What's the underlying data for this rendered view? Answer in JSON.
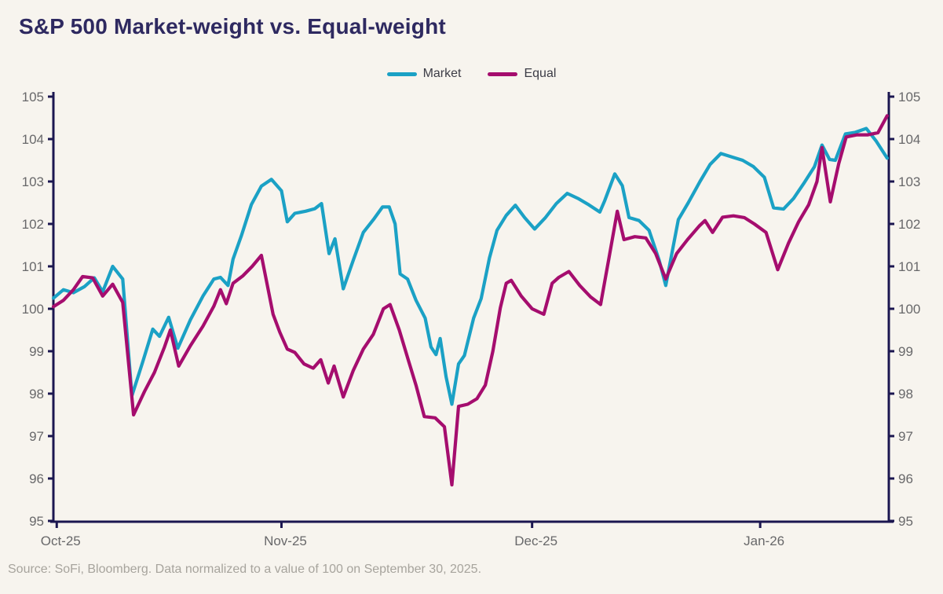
{
  "title": "S&P 500 Market-weight vs. Equal-weight",
  "source_note": "Source: SoFi, Bloomberg. Data normalized to a value of 100 on September 30, 2025.",
  "colors": {
    "background": "#f7f4ee",
    "title": "#2e2960",
    "axis": "#1b1650",
    "tick_label": "#68686a",
    "market": "#1ba1c5",
    "equal": "#a50d6e"
  },
  "legend": {
    "market_label": "Market",
    "equal_label": "Equal"
  },
  "chart_data": {
    "type": "line",
    "title": "S&P 500 Market-weight vs. Equal-weight",
    "xlabel": "",
    "ylabel": "",
    "grid": false,
    "legend_position": "top-center",
    "y_axis": {
      "min": 95,
      "max": 105,
      "step": 1,
      "tick_labels": [
        95,
        96,
        97,
        98,
        99,
        100,
        101,
        102,
        103,
        104,
        105
      ],
      "sides": "both"
    },
    "x_axis": {
      "tick_labels": [
        "Oct-25",
        "Nov-25",
        "Dec-25",
        "Jan-26"
      ],
      "tick_positions": [
        0.004,
        0.273,
        0.573,
        0.846
      ]
    },
    "series": [
      {
        "name": "Market",
        "color": "#1ba1c5",
        "points": [
          [
            0.0,
            100.25
          ],
          [
            0.012,
            100.45
          ],
          [
            0.024,
            100.38
          ],
          [
            0.037,
            100.52
          ],
          [
            0.049,
            100.73
          ],
          [
            0.059,
            100.4
          ],
          [
            0.071,
            101.0
          ],
          [
            0.083,
            100.7
          ],
          [
            0.094,
            97.95
          ],
          [
            0.107,
            98.75
          ],
          [
            0.119,
            99.52
          ],
          [
            0.127,
            99.35
          ],
          [
            0.138,
            99.8
          ],
          [
            0.149,
            99.07
          ],
          [
            0.164,
            99.74
          ],
          [
            0.179,
            100.3
          ],
          [
            0.192,
            100.7
          ],
          [
            0.2,
            100.74
          ],
          [
            0.209,
            100.55
          ],
          [
            0.215,
            101.17
          ],
          [
            0.225,
            101.72
          ],
          [
            0.237,
            102.46
          ],
          [
            0.249,
            102.89
          ],
          [
            0.261,
            103.05
          ],
          [
            0.273,
            102.78
          ],
          [
            0.28,
            102.05
          ],
          [
            0.289,
            102.25
          ],
          [
            0.302,
            102.3
          ],
          [
            0.313,
            102.36
          ],
          [
            0.321,
            102.48
          ],
          [
            0.33,
            101.3
          ],
          [
            0.337,
            101.65
          ],
          [
            0.347,
            100.47
          ],
          [
            0.359,
            101.15
          ],
          [
            0.371,
            101.8
          ],
          [
            0.383,
            102.1
          ],
          [
            0.394,
            102.4
          ],
          [
            0.402,
            102.4
          ],
          [
            0.409,
            102.0
          ],
          [
            0.415,
            100.82
          ],
          [
            0.424,
            100.7
          ],
          [
            0.434,
            100.2
          ],
          [
            0.445,
            99.78
          ],
          [
            0.452,
            99.1
          ],
          [
            0.458,
            98.92
          ],
          [
            0.463,
            99.3
          ],
          [
            0.47,
            98.4
          ],
          [
            0.477,
            97.75
          ],
          [
            0.485,
            98.7
          ],
          [
            0.492,
            98.9
          ],
          [
            0.503,
            99.78
          ],
          [
            0.512,
            100.24
          ],
          [
            0.522,
            101.2
          ],
          [
            0.531,
            101.85
          ],
          [
            0.542,
            102.2
          ],
          [
            0.553,
            102.44
          ],
          [
            0.564,
            102.15
          ],
          [
            0.576,
            101.88
          ],
          [
            0.589,
            102.15
          ],
          [
            0.602,
            102.48
          ],
          [
            0.615,
            102.72
          ],
          [
            0.628,
            102.6
          ],
          [
            0.641,
            102.45
          ],
          [
            0.654,
            102.28
          ],
          [
            0.66,
            102.55
          ],
          [
            0.672,
            103.18
          ],
          [
            0.681,
            102.9
          ],
          [
            0.689,
            102.15
          ],
          [
            0.701,
            102.08
          ],
          [
            0.713,
            101.85
          ],
          [
            0.725,
            101.15
          ],
          [
            0.733,
            100.55
          ],
          [
            0.748,
            102.1
          ],
          [
            0.76,
            102.5
          ],
          [
            0.774,
            103.0
          ],
          [
            0.786,
            103.4
          ],
          [
            0.799,
            103.66
          ],
          [
            0.812,
            103.58
          ],
          [
            0.825,
            103.5
          ],
          [
            0.838,
            103.35
          ],
          [
            0.851,
            103.1
          ],
          [
            0.862,
            102.38
          ],
          [
            0.874,
            102.35
          ],
          [
            0.886,
            102.6
          ],
          [
            0.898,
            102.95
          ],
          [
            0.911,
            103.35
          ],
          [
            0.92,
            103.86
          ],
          [
            0.929,
            103.52
          ],
          [
            0.936,
            103.5
          ],
          [
            0.948,
            104.12
          ],
          [
            0.96,
            104.16
          ],
          [
            0.973,
            104.25
          ],
          [
            0.985,
            103.95
          ],
          [
            0.998,
            103.55
          ]
        ]
      },
      {
        "name": "Equal",
        "color": "#a50d6e",
        "points": [
          [
            0.0,
            100.05
          ],
          [
            0.012,
            100.2
          ],
          [
            0.024,
            100.45
          ],
          [
            0.035,
            100.76
          ],
          [
            0.047,
            100.73
          ],
          [
            0.059,
            100.3
          ],
          [
            0.071,
            100.58
          ],
          [
            0.083,
            100.15
          ],
          [
            0.096,
            97.5
          ],
          [
            0.109,
            98.05
          ],
          [
            0.121,
            98.5
          ],
          [
            0.133,
            99.1
          ],
          [
            0.14,
            99.5
          ],
          [
            0.15,
            98.65
          ],
          [
            0.164,
            99.13
          ],
          [
            0.179,
            99.59
          ],
          [
            0.192,
            100.06
          ],
          [
            0.2,
            100.45
          ],
          [
            0.207,
            100.12
          ],
          [
            0.215,
            100.6
          ],
          [
            0.227,
            100.78
          ],
          [
            0.238,
            101.0
          ],
          [
            0.249,
            101.26
          ],
          [
            0.263,
            99.87
          ],
          [
            0.271,
            99.45
          ],
          [
            0.28,
            99.05
          ],
          [
            0.289,
            98.97
          ],
          [
            0.3,
            98.7
          ],
          [
            0.311,
            98.6
          ],
          [
            0.32,
            98.8
          ],
          [
            0.329,
            98.25
          ],
          [
            0.336,
            98.65
          ],
          [
            0.347,
            97.92
          ],
          [
            0.359,
            98.55
          ],
          [
            0.371,
            99.05
          ],
          [
            0.383,
            99.4
          ],
          [
            0.395,
            100.0
          ],
          [
            0.403,
            100.1
          ],
          [
            0.414,
            99.5
          ],
          [
            0.425,
            98.78
          ],
          [
            0.434,
            98.2
          ],
          [
            0.444,
            97.46
          ],
          [
            0.457,
            97.43
          ],
          [
            0.468,
            97.22
          ],
          [
            0.477,
            95.85
          ],
          [
            0.485,
            97.7
          ],
          [
            0.496,
            97.75
          ],
          [
            0.507,
            97.88
          ],
          [
            0.517,
            98.2
          ],
          [
            0.526,
            99.0
          ],
          [
            0.535,
            100.02
          ],
          [
            0.542,
            100.6
          ],
          [
            0.548,
            100.67
          ],
          [
            0.56,
            100.3
          ],
          [
            0.573,
            100.0
          ],
          [
            0.587,
            99.87
          ],
          [
            0.597,
            100.6
          ],
          [
            0.605,
            100.74
          ],
          [
            0.617,
            100.88
          ],
          [
            0.63,
            100.55
          ],
          [
            0.643,
            100.28
          ],
          [
            0.655,
            100.1
          ],
          [
            0.665,
            101.2
          ],
          [
            0.675,
            102.3
          ],
          [
            0.683,
            101.63
          ],
          [
            0.696,
            101.7
          ],
          [
            0.709,
            101.67
          ],
          [
            0.721,
            101.3
          ],
          [
            0.733,
            100.7
          ],
          [
            0.746,
            101.3
          ],
          [
            0.759,
            101.63
          ],
          [
            0.773,
            101.95
          ],
          [
            0.78,
            102.08
          ],
          [
            0.789,
            101.8
          ],
          [
            0.801,
            102.16
          ],
          [
            0.814,
            102.19
          ],
          [
            0.827,
            102.15
          ],
          [
            0.839,
            102.0
          ],
          [
            0.853,
            101.8
          ],
          [
            0.867,
            100.92
          ],
          [
            0.88,
            101.55
          ],
          [
            0.892,
            102.05
          ],
          [
            0.904,
            102.45
          ],
          [
            0.914,
            103.0
          ],
          [
            0.92,
            103.8
          ],
          [
            0.93,
            102.52
          ],
          [
            0.94,
            103.42
          ],
          [
            0.949,
            104.05
          ],
          [
            0.962,
            104.1
          ],
          [
            0.975,
            104.1
          ],
          [
            0.987,
            104.15
          ],
          [
            0.998,
            104.55
          ]
        ]
      }
    ]
  }
}
